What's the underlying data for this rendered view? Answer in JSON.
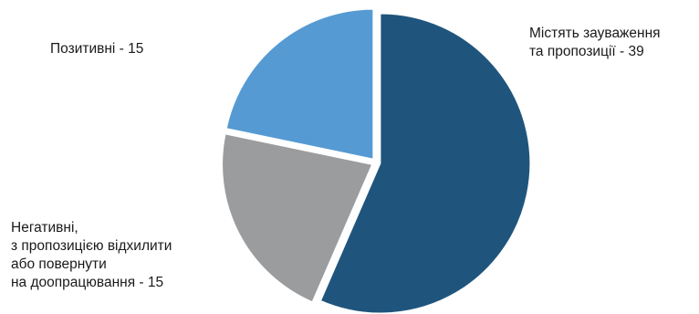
{
  "chart_data": {
    "type": "pie",
    "title": "",
    "slices": [
      {
        "label": "Містять зауваження\nта пропозиції - 39",
        "value": 39,
        "color": "#1f557d"
      },
      {
        "label": "Негативні,\nз пропозицією відхилити\nабо повернути\nна доопрацювання - 15",
        "value": 15,
        "color": "#9b9c9e"
      },
      {
        "label": "Позитивні - 15",
        "value": 15,
        "color": "#559ad3"
      }
    ],
    "start_angle_deg": 0,
    "direction": "clockwise",
    "exploded": true
  }
}
